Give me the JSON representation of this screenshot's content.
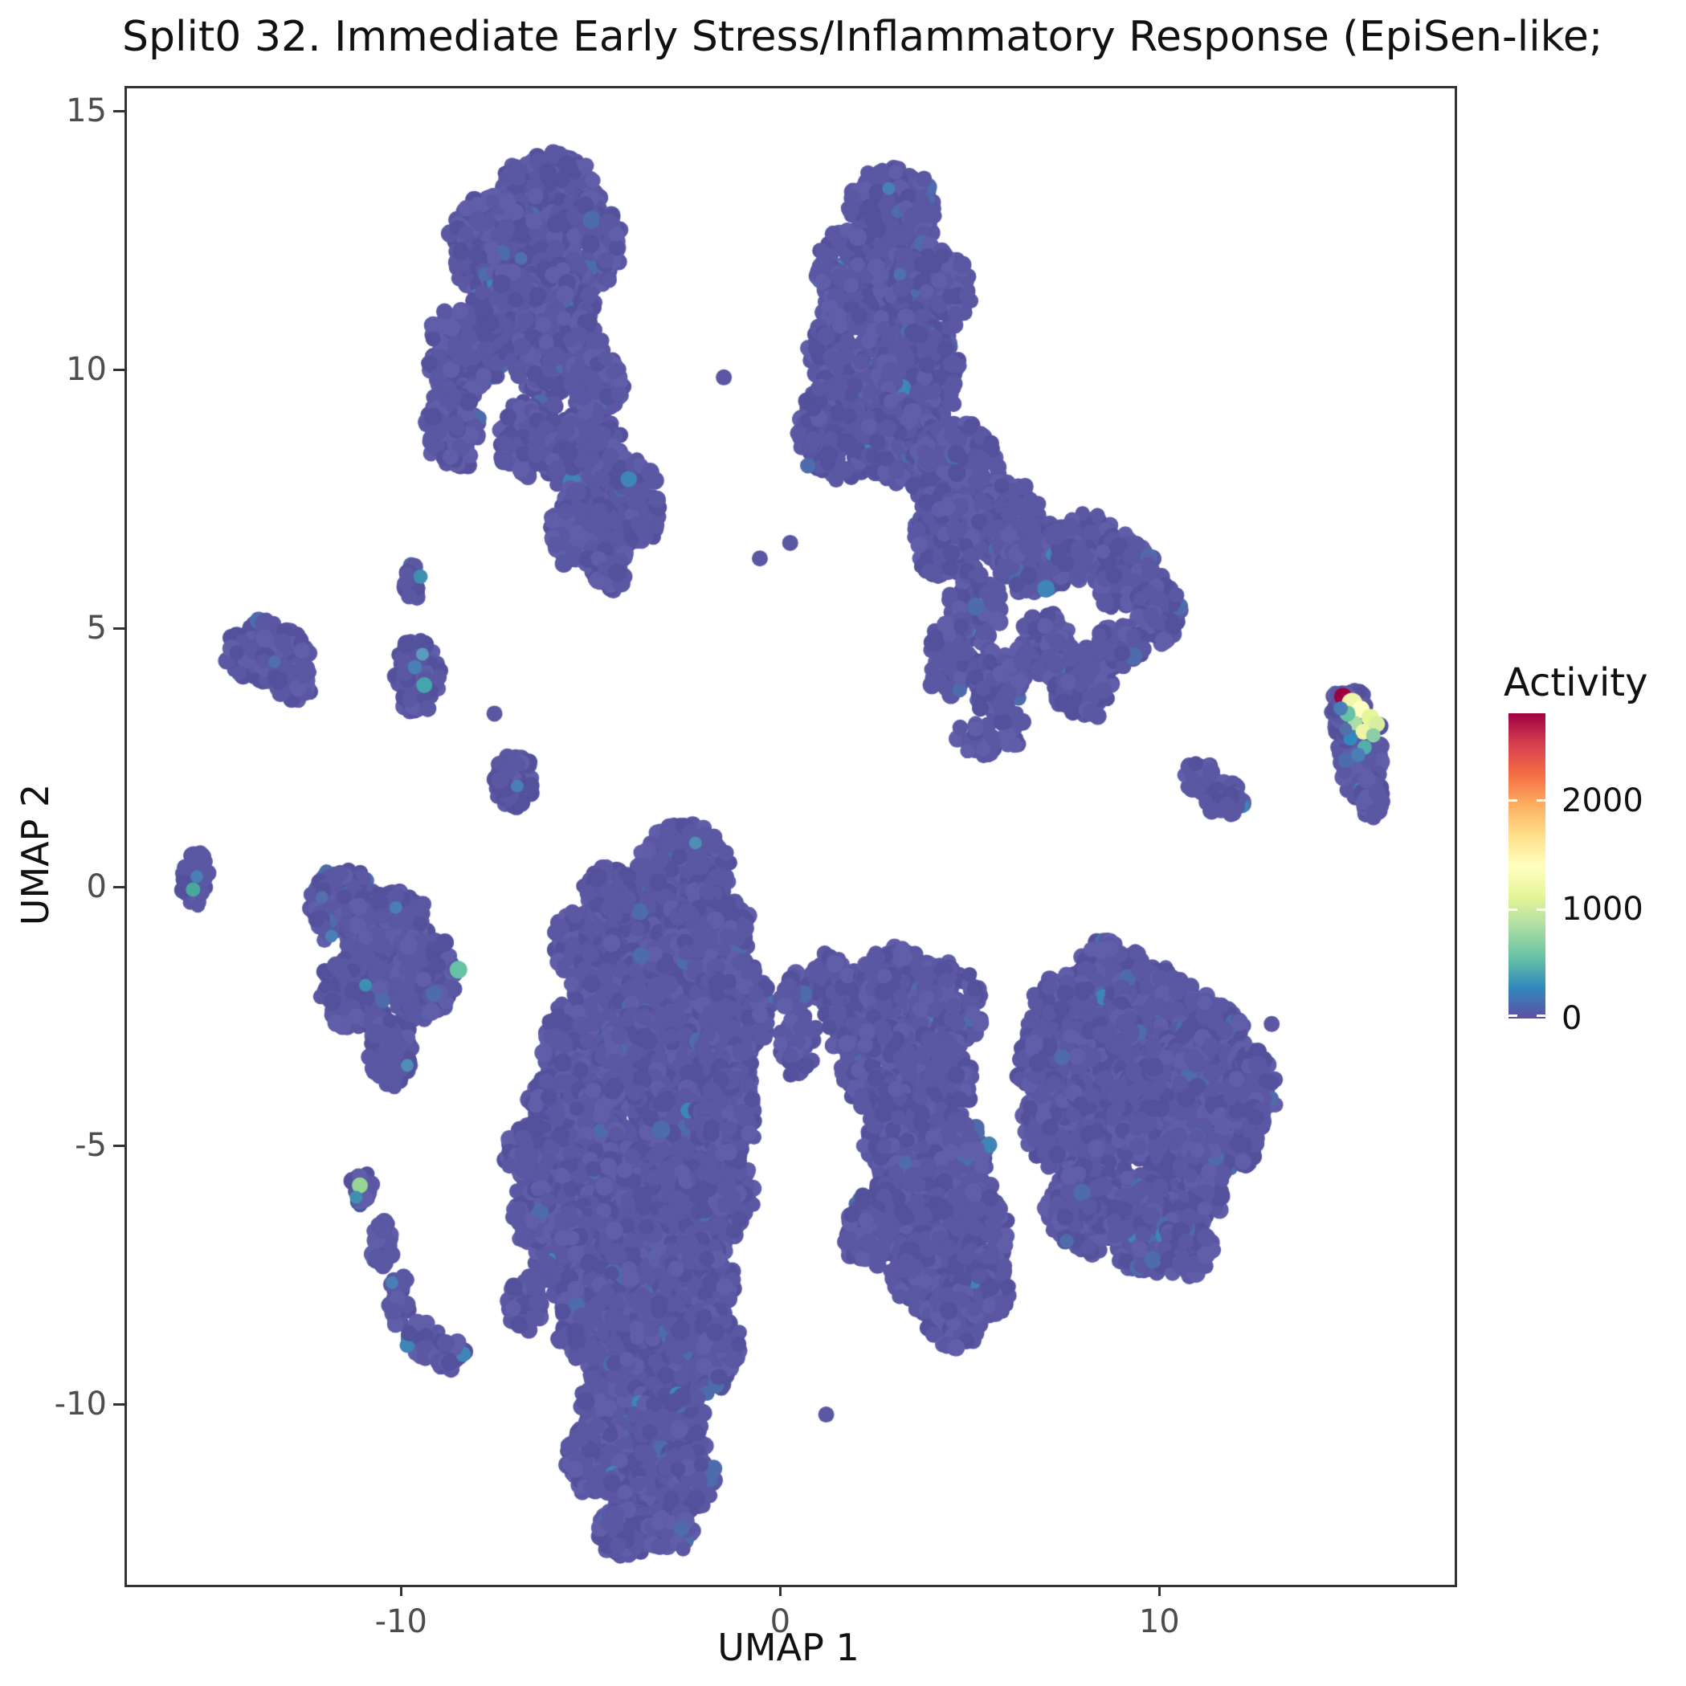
{
  "title": "Split0 32. Immediate Early Stress/Inflammatory Response (EpiSen-like;",
  "axes": {
    "x_label": "UMAP 1",
    "y_label": "UMAP 2",
    "x_ticks": [
      -10,
      0,
      10
    ],
    "y_ticks": [
      15,
      10,
      5,
      0,
      -5,
      -10
    ]
  },
  "legend": {
    "title": "Activity",
    "ticks": [
      0,
      1000,
      2000
    ],
    "max": 2800,
    "palette": [
      {
        "t": 0.0,
        "c": "#5e4fa2"
      },
      {
        "t": 0.1,
        "c": "#3288bd"
      },
      {
        "t": 0.2,
        "c": "#66c2a5"
      },
      {
        "t": 0.3,
        "c": "#abdda4"
      },
      {
        "t": 0.4,
        "c": "#e6f598"
      },
      {
        "t": 0.5,
        "c": "#ffffbf"
      },
      {
        "t": 0.6,
        "c": "#fee08b"
      },
      {
        "t": 0.7,
        "c": "#fdae61"
      },
      {
        "t": 0.8,
        "c": "#f46d43"
      },
      {
        "t": 0.9,
        "c": "#d53e4f"
      },
      {
        "t": 1.0,
        "c": "#9e0142"
      }
    ]
  },
  "chart_data": {
    "type": "scatter",
    "title": "Split0 32. Immediate Early Stress/Inflammatory Response (EpiSen-like;",
    "xlabel": "UMAP 1",
    "ylabel": "UMAP 2",
    "xlim": [
      -17.3,
      17.7
    ],
    "ylim": [
      -13.4,
      15.4
    ],
    "color_scale": {
      "label": "Activity",
      "min": 0,
      "max": 2800,
      "ticks": [
        0,
        1000,
        2000
      ]
    },
    "point_color": "#5a57a3",
    "point_variants": [
      {
        "c": "#54519c",
        "p": 0.25
      },
      {
        "c": "#615ea9",
        "p": 0.2
      },
      {
        "c": "#4e6bab",
        "p": 0.02
      },
      {
        "c": "#3f85b5",
        "p": 0.004
      }
    ],
    "clusters": [
      [
        -6.2,
        13.4,
        1.25,
        0.85,
        240
      ],
      [
        -7.5,
        12.4,
        1.25,
        1.0,
        300
      ],
      [
        -5.2,
        12.5,
        0.9,
        0.9,
        190
      ],
      [
        -6.6,
        11.2,
        1.5,
        0.9,
        320
      ],
      [
        -8.4,
        10.4,
        0.95,
        0.9,
        200
      ],
      [
        -6.0,
        10.4,
        1.2,
        0.8,
        230
      ],
      [
        -4.9,
        9.8,
        0.7,
        0.6,
        100
      ],
      [
        -8.7,
        8.9,
        0.7,
        0.75,
        130
      ],
      [
        -6.5,
        8.7,
        1.05,
        0.75,
        180
      ],
      [
        -5.1,
        8.3,
        1.0,
        0.8,
        170
      ],
      [
        -4.1,
        7.5,
        0.95,
        0.9,
        170
      ],
      [
        -5.3,
        7.0,
        0.85,
        0.75,
        140
      ],
      [
        -4.6,
        6.3,
        0.5,
        0.55,
        60
      ],
      [
        -13.6,
        4.6,
        1.05,
        0.6,
        140
      ],
      [
        -12.9,
        4.0,
        0.5,
        0.4,
        50
      ],
      [
        -9.6,
        4.1,
        0.6,
        0.7,
        100
      ],
      [
        -9.75,
        6.0,
        0.28,
        0.38,
        28
      ],
      [
        -7.1,
        2.1,
        0.55,
        0.5,
        70
      ],
      [
        -15.5,
        0.25,
        0.35,
        0.55,
        45
      ],
      [
        -11.6,
        -0.3,
        0.85,
        0.7,
        150
      ],
      [
        -10.4,
        -0.9,
        1.1,
        0.9,
        230
      ],
      [
        -9.5,
        -1.7,
        0.9,
        0.8,
        170
      ],
      [
        -11.3,
        -2.0,
        0.85,
        0.75,
        150
      ],
      [
        -10.3,
        -3.1,
        0.6,
        0.65,
        85
      ],
      [
        -11.1,
        -5.8,
        0.32,
        0.35,
        32
      ],
      [
        -10.55,
        -6.9,
        0.28,
        0.5,
        38
      ],
      [
        -10.1,
        -7.9,
        0.28,
        0.5,
        34
      ],
      [
        -9.5,
        -8.7,
        0.45,
        0.35,
        40
      ],
      [
        -8.8,
        -9.0,
        0.4,
        0.3,
        30
      ],
      [
        2.9,
        13.1,
        1.1,
        0.85,
        220
      ],
      [
        2.2,
        11.9,
        1.3,
        1.0,
        280
      ],
      [
        3.9,
        11.6,
        1.0,
        0.9,
        200
      ],
      [
        2.0,
        10.3,
        1.3,
        1.0,
        280
      ],
      [
        3.6,
        9.9,
        1.05,
        0.9,
        210
      ],
      [
        1.5,
        8.9,
        1.1,
        0.9,
        220
      ],
      [
        3.1,
        8.7,
        1.0,
        0.85,
        190
      ],
      [
        4.6,
        8.1,
        1.1,
        0.9,
        210
      ],
      [
        5.8,
        7.1,
        0.95,
        0.8,
        160
      ],
      [
        4.3,
        6.8,
        0.9,
        0.8,
        160
      ],
      [
        6.6,
        6.4,
        0.9,
        0.7,
        140
      ],
      [
        7.9,
        6.6,
        0.95,
        0.65,
        130
      ],
      [
        9.1,
        6.1,
        0.85,
        0.7,
        130
      ],
      [
        9.9,
        5.3,
        0.6,
        0.6,
        80
      ],
      [
        5.1,
        5.5,
        0.7,
        0.7,
        100
      ],
      [
        4.4,
        4.5,
        0.6,
        0.75,
        80
      ],
      [
        5.7,
        4.0,
        0.7,
        0.65,
        85
      ],
      [
        6.9,
        4.7,
        0.7,
        0.6,
        80
      ],
      [
        7.9,
        4.0,
        0.8,
        0.7,
        110
      ],
      [
        8.9,
        4.7,
        0.6,
        0.5,
        60
      ],
      [
        5.1,
        2.9,
        0.55,
        0.45,
        28
      ],
      [
        6.1,
        3.1,
        0.4,
        0.35,
        18
      ],
      [
        11.0,
        2.15,
        0.45,
        0.3,
        34
      ],
      [
        11.7,
        1.75,
        0.5,
        0.32,
        36
      ],
      [
        15.25,
        2.65,
        0.6,
        0.85,
        140
      ],
      [
        15.0,
        3.35,
        0.5,
        0.5,
        70
      ],
      [
        14.75,
        3.6,
        0.3,
        0.3,
        25
      ],
      [
        15.55,
        1.8,
        0.3,
        0.45,
        35
      ],
      [
        -2.6,
        0.4,
        1.15,
        0.85,
        240
      ],
      [
        -3.8,
        -0.6,
        1.2,
        1.0,
        280
      ],
      [
        -2.0,
        -0.9,
        1.15,
        0.95,
        260
      ],
      [
        -5.4,
        -1.0,
        0.6,
        0.6,
        80
      ],
      [
        -4.6,
        0.0,
        0.6,
        0.5,
        70
      ],
      [
        -4.6,
        -1.8,
        1.0,
        0.9,
        220
      ],
      [
        -2.8,
        -2.0,
        1.3,
        1.0,
        300
      ],
      [
        -1.2,
        -2.3,
        0.95,
        0.9,
        200
      ],
      [
        -5.3,
        -3.0,
        1.0,
        0.9,
        220
      ],
      [
        -3.5,
        -3.3,
        1.3,
        1.0,
        300
      ],
      [
        -1.8,
        -3.7,
        1.0,
        0.9,
        210
      ],
      [
        -5.8,
        -4.3,
        0.9,
        0.9,
        200
      ],
      [
        -4.3,
        -4.6,
        1.2,
        1.0,
        280
      ],
      [
        -2.6,
        -4.9,
        1.1,
        1.0,
        250
      ],
      [
        -1.4,
        -4.4,
        0.7,
        0.8,
        130
      ],
      [
        -5.9,
        -5.7,
        0.9,
        0.9,
        200
      ],
      [
        -4.5,
        -6.0,
        1.2,
        1.0,
        280
      ],
      [
        -2.8,
        -6.3,
        1.1,
        1.0,
        250
      ],
      [
        -1.5,
        -5.9,
        0.7,
        0.9,
        140
      ],
      [
        -5.5,
        -7.1,
        0.95,
        0.9,
        210
      ],
      [
        -3.9,
        -7.4,
        1.2,
        1.0,
        280
      ],
      [
        -2.3,
        -7.6,
        1.0,
        0.9,
        220
      ],
      [
        -5.0,
        -8.4,
        0.9,
        0.8,
        190
      ],
      [
        -3.4,
        -8.8,
        1.1,
        0.9,
        250
      ],
      [
        -2.0,
        -8.9,
        0.9,
        0.8,
        180
      ],
      [
        -4.4,
        -9.9,
        0.95,
        0.85,
        200
      ],
      [
        -3.0,
        -10.3,
        1.0,
        0.85,
        210
      ],
      [
        -4.9,
        -11.0,
        0.8,
        0.7,
        150
      ],
      [
        -3.6,
        -11.5,
        0.9,
        0.7,
        160
      ],
      [
        -2.5,
        -11.4,
        0.7,
        0.65,
        120
      ],
      [
        -4.2,
        -12.4,
        0.7,
        0.5,
        90
      ],
      [
        -2.95,
        -12.4,
        0.6,
        0.45,
        70
      ],
      [
        -6.6,
        -6.3,
        0.5,
        0.6,
        75
      ],
      [
        -6.8,
        -8.0,
        0.45,
        0.55,
        55
      ],
      [
        -6.9,
        -5.1,
        0.4,
        0.45,
        45
      ],
      [
        0.4,
        -3.0,
        0.5,
        0.6,
        50
      ],
      [
        1.2,
        -1.7,
        0.5,
        0.5,
        42
      ],
      [
        0.3,
        -2.0,
        0.4,
        0.4,
        26
      ],
      [
        1.9,
        -2.4,
        0.8,
        0.8,
        150
      ],
      [
        3.0,
        -2.0,
        1.0,
        0.9,
        220
      ],
      [
        4.3,
        -2.3,
        0.95,
        0.85,
        190
      ],
      [
        2.6,
        -3.4,
        1.0,
        0.9,
        210
      ],
      [
        4.0,
        -3.7,
        0.95,
        0.85,
        190
      ],
      [
        3.2,
        -4.8,
        1.0,
        0.9,
        200
      ],
      [
        4.6,
        -5.3,
        0.9,
        0.9,
        180
      ],
      [
        3.4,
        -6.2,
        1.0,
        0.9,
        200
      ],
      [
        5.0,
        -6.6,
        0.9,
        0.8,
        180
      ],
      [
        2.3,
        -6.6,
        0.65,
        0.7,
        110
      ],
      [
        3.8,
        -7.4,
        0.9,
        0.75,
        170
      ],
      [
        5.2,
        -7.7,
        0.8,
        0.65,
        130
      ],
      [
        4.5,
        -8.3,
        0.75,
        0.55,
        100
      ],
      [
        8.6,
        -1.8,
        1.0,
        0.8,
        200
      ],
      [
        7.4,
        -2.6,
        0.9,
        0.9,
        180
      ],
      [
        9.8,
        -2.4,
        1.1,
        0.9,
        220
      ],
      [
        11.2,
        -3.0,
        1.0,
        0.9,
        200
      ],
      [
        8.6,
        -3.4,
        1.2,
        1.0,
        280
      ],
      [
        10.3,
        -4.0,
        1.2,
        1.0,
        260
      ],
      [
        7.4,
        -4.5,
        1.0,
        0.9,
        200
      ],
      [
        11.8,
        -4.6,
        0.9,
        0.8,
        170
      ],
      [
        9.0,
        -5.2,
        1.2,
        1.0,
        260
      ],
      [
        10.6,
        -5.6,
        1.0,
        0.9,
        200
      ],
      [
        8.0,
        -6.2,
        1.0,
        0.8,
        190
      ],
      [
        9.6,
        -6.6,
        0.95,
        0.8,
        170
      ],
      [
        10.7,
        -6.9,
        0.65,
        0.6,
        90
      ],
      [
        12.4,
        -3.9,
        0.6,
        0.75,
        100
      ],
      [
        6.8,
        -3.4,
        0.6,
        0.6,
        80
      ]
    ],
    "singles": [
      [
        1.15,
        -10.15
      ],
      [
        -1.55,
        9.9
      ],
      [
        -0.6,
        6.4
      ],
      [
        0.2,
        6.7
      ],
      [
        -7.6,
        3.4
      ],
      [
        12.9,
        -2.6
      ]
    ],
    "highlight_points": [
      [
        -9.45,
        3.95,
        "#45a5ab",
        10
      ],
      [
        -9.7,
        4.3,
        "#4a7fb5",
        9
      ],
      [
        -9.55,
        6.05,
        "#3e8fb0",
        9
      ],
      [
        -9.5,
        4.55,
        "#5b9bc0",
        8
      ],
      [
        -8.55,
        -1.55,
        "#66c2a5",
        11
      ],
      [
        -11.9,
        -0.9,
        "#4a7fb5",
        8
      ],
      [
        -11.0,
        -1.85,
        "#3e8fb0",
        8
      ],
      [
        -12.15,
        -0.15,
        "#5470ab",
        8
      ],
      [
        -10.2,
        -0.35,
        "#4a7fb5",
        8
      ],
      [
        -9.9,
        -3.4,
        "#4f8fb5",
        8
      ],
      [
        -15.55,
        0.0,
        "#49a89d",
        9
      ],
      [
        -15.45,
        0.25,
        "#4a7fb5",
        8
      ],
      [
        -11.15,
        -5.72,
        "#99d594",
        10
      ],
      [
        -11.25,
        -5.95,
        "#3e8fb0",
        8
      ],
      [
        -10.3,
        -7.6,
        "#4a7fb5",
        8
      ],
      [
        -7.0,
        2.0,
        "#4a7fb5",
        8
      ],
      [
        -13.4,
        4.4,
        "#4f6fae",
        8
      ],
      [
        -6.9,
        12.2,
        "#4f6fae",
        8
      ],
      [
        2.8,
        13.55,
        "#4a7fb5",
        8
      ],
      [
        3.1,
        11.9,
        "#4f6fae",
        8
      ],
      [
        -2.3,
        0.9,
        "#4f8fb5",
        8
      ],
      [
        14.78,
        3.73,
        "#9e0142",
        11
      ],
      [
        15.02,
        3.6,
        "#f2f6a8",
        13
      ],
      [
        15.25,
        3.48,
        "#ffffbf",
        11
      ],
      [
        15.5,
        3.32,
        "#e6f598",
        11
      ],
      [
        15.68,
        3.2,
        "#d9ef9f",
        10
      ],
      [
        15.1,
        3.22,
        "#abdda4",
        9
      ],
      [
        14.9,
        3.4,
        "#66c2a5",
        10
      ],
      [
        15.32,
        3.05,
        "#eef5a3",
        10
      ],
      [
        14.98,
        2.92,
        "#3288bd",
        9
      ],
      [
        15.35,
        2.75,
        "#54aead",
        9
      ],
      [
        15.58,
        2.98,
        "#8ccfa7",
        9
      ],
      [
        14.72,
        3.5,
        "#4a7fb5",
        9
      ],
      [
        15.18,
        2.6,
        "#4a7fb5",
        9
      ],
      [
        14.85,
        3.1,
        "#5470ab",
        8
      ]
    ]
  }
}
